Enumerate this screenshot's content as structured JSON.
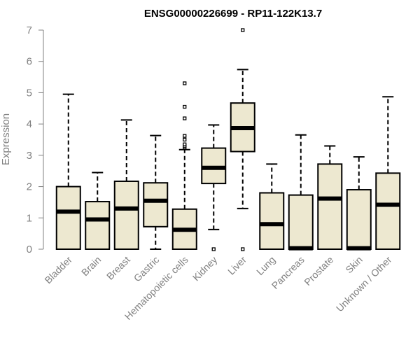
{
  "chart_data": {
    "type": "box",
    "title": "ENSG00000226699 - RP11-122K13.7",
    "ylabel": "Expression",
    "xlabel": "",
    "ylim": [
      0,
      7
    ],
    "yticks": [
      0,
      1,
      2,
      3,
      4,
      5,
      6,
      7
    ],
    "box_fill": "#EDE8D0",
    "box_stroke": "#000000",
    "axis_color": "#808080",
    "categories": [
      "Bladder",
      "Brain",
      "Breast",
      "Gastric",
      "Hematopoietic cells",
      "Kidney",
      "Liver",
      "Lung",
      "Pancreas",
      "Prostate",
      "Skin",
      "Unknown / Other"
    ],
    "boxes": [
      {
        "whisker_low": 0,
        "q1": 0,
        "median": 1.2,
        "q3": 2.0,
        "whisker_high": 4.95,
        "outliers": []
      },
      {
        "whisker_low": 0,
        "q1": 0,
        "median": 0.95,
        "q3": 1.52,
        "whisker_high": 2.45,
        "outliers": []
      },
      {
        "whisker_low": 0,
        "q1": 0,
        "median": 1.3,
        "q3": 2.17,
        "whisker_high": 4.13,
        "outliers": []
      },
      {
        "whisker_low": 0,
        "q1": 0.72,
        "median": 1.55,
        "q3": 2.12,
        "whisker_high": 3.63,
        "outliers": []
      },
      {
        "whisker_low": 0,
        "q1": 0,
        "median": 0.62,
        "q3": 1.28,
        "whisker_high": 3.18,
        "outliers": [
          3.25,
          3.3,
          3.35,
          3.5,
          3.62,
          4.18,
          4.55,
          5.3
        ]
      },
      {
        "whisker_low": 0.63,
        "q1": 2.1,
        "median": 2.6,
        "q3": 3.23,
        "whisker_high": 3.97,
        "outliers": [
          0
        ]
      },
      {
        "whisker_low": 1.3,
        "q1": 3.12,
        "median": 3.87,
        "q3": 4.67,
        "whisker_high": 5.74,
        "outliers": [
          0,
          7.0
        ]
      },
      {
        "whisker_low": 0,
        "q1": 0,
        "median": 0.8,
        "q3": 1.8,
        "whisker_high": 2.72,
        "outliers": []
      },
      {
        "whisker_low": 0,
        "q1": 0,
        "median": 0.03,
        "q3": 1.73,
        "whisker_high": 3.65,
        "outliers": []
      },
      {
        "whisker_low": 0,
        "q1": 0,
        "median": 1.62,
        "q3": 2.72,
        "whisker_high": 3.3,
        "outliers": []
      },
      {
        "whisker_low": 0,
        "q1": 0,
        "median": 0.03,
        "q3": 1.9,
        "whisker_high": 2.95,
        "outliers": []
      },
      {
        "whisker_low": 0,
        "q1": 0,
        "median": 1.42,
        "q3": 2.43,
        "whisker_high": 4.87,
        "outliers": []
      }
    ]
  }
}
